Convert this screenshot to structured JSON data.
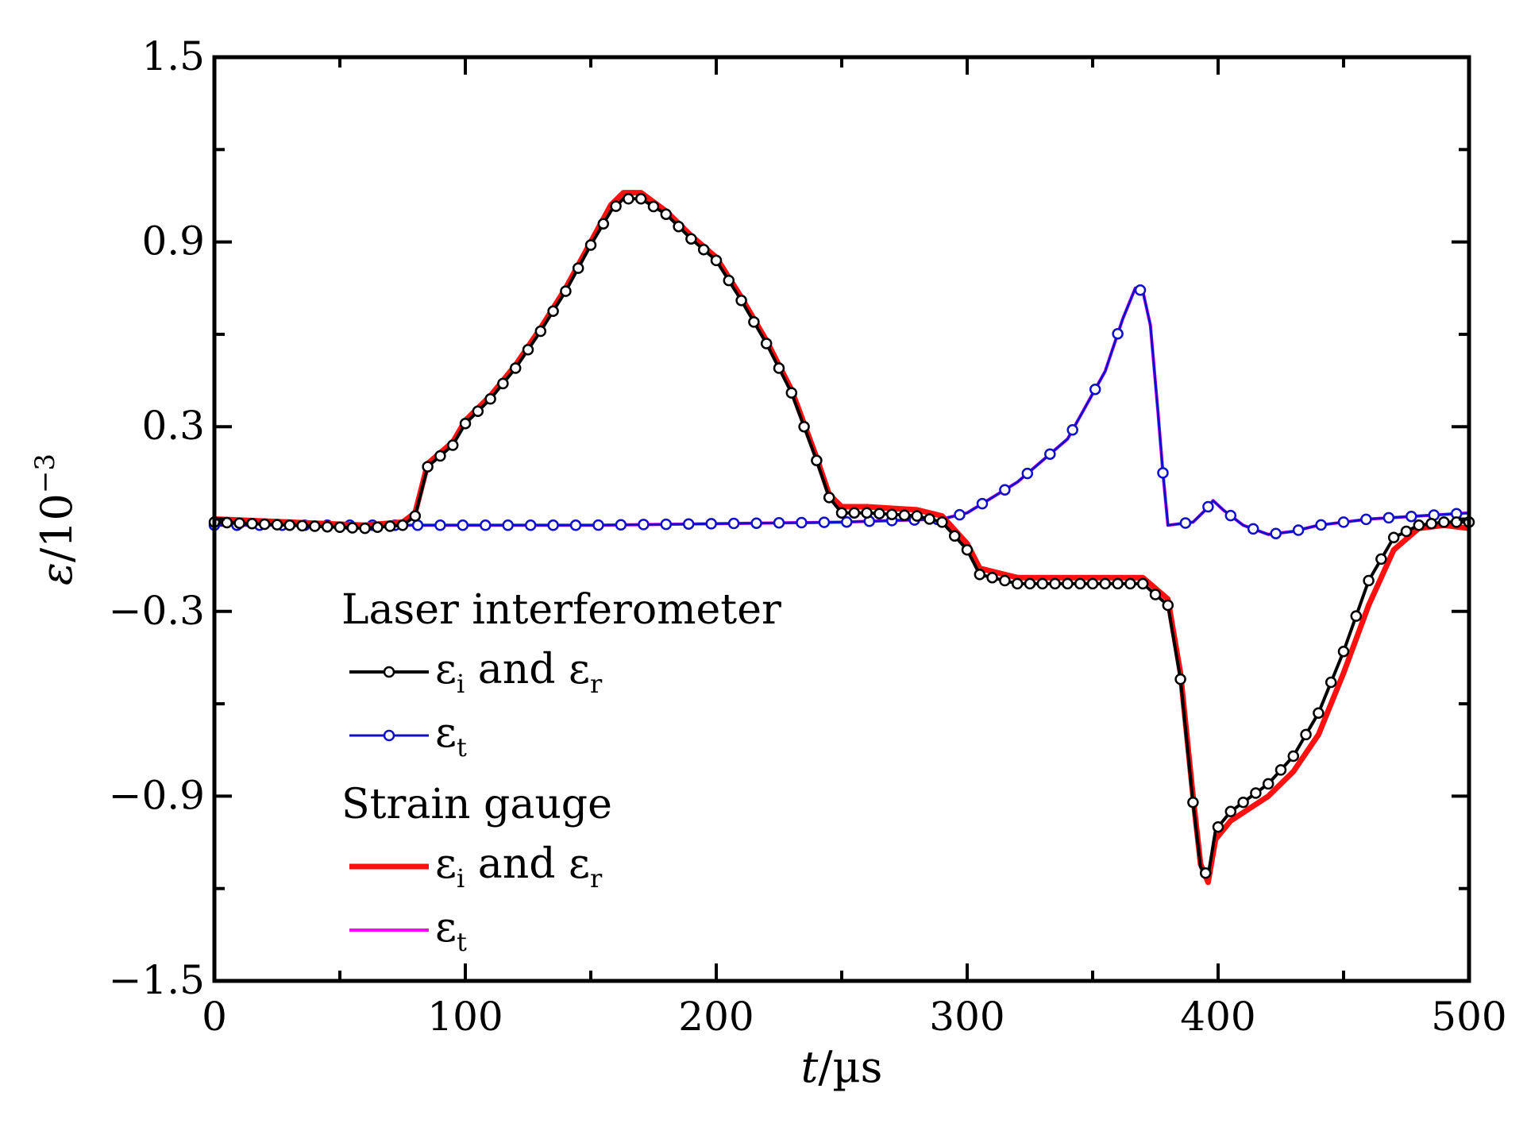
{
  "chart_data": {
    "type": "line",
    "xlabel": {
      "var": "t",
      "unit": "/µs"
    },
    "ylabel": {
      "var": "ε",
      "unit": "/10",
      "exp": "−3"
    },
    "xlim": [
      0,
      500
    ],
    "ylim": [
      -1.5,
      1.5
    ],
    "x_ticks": [
      0,
      100,
      200,
      300,
      400,
      500
    ],
    "x_tick_labels": [
      "0",
      "100",
      "200",
      "300",
      "400",
      "500"
    ],
    "y_ticks": [
      -1.5,
      -0.9,
      -0.3,
      0.3,
      0.9,
      1.5
    ],
    "y_tick_labels": [
      "−1.5",
      "−0.9",
      "−0.3",
      "0.3",
      "0.9",
      "1.5"
    ],
    "grid": false,
    "legend": {
      "position": "lower-left",
      "groups": [
        {
          "title": "Laser interferometer",
          "entries": [
            {
              "series": "li_ir",
              "label_main": "ε",
              "sub1": "i",
              "mid": " and ε",
              "sub2": "r"
            },
            {
              "series": "li_t",
              "label_main": "ε",
              "sub1": "t",
              "mid": "",
              "sub2": ""
            }
          ]
        },
        {
          "title": "Strain gauge",
          "entries": [
            {
              "series": "sg_ir",
              "label_main": "ε",
              "sub1": "i",
              "mid": " and ε",
              "sub2": "r"
            },
            {
              "series": "sg_t",
              "label_main": "ε",
              "sub1": "t",
              "mid": "",
              "sub2": ""
            }
          ]
        }
      ]
    },
    "series": [
      {
        "id": "sg_t",
        "color": "#ff00ff",
        "markers": false,
        "width": 4,
        "points": [
          [
            0,
            -0.02
          ],
          [
            80,
            -0.02
          ],
          [
            150,
            -0.02
          ],
          [
            250,
            -0.01
          ],
          [
            290,
            0.0
          ],
          [
            300,
            0.02
          ],
          [
            320,
            0.12
          ],
          [
            340,
            0.26
          ],
          [
            355,
            0.48
          ],
          [
            362,
            0.65
          ],
          [
            367,
            0.75
          ],
          [
            370,
            0.74
          ],
          [
            373,
            0.63
          ],
          [
            376,
            0.35
          ],
          [
            378,
            0.15
          ],
          [
            380,
            -0.02
          ],
          [
            390,
            -0.01
          ],
          [
            395,
            0.03
          ],
          [
            398,
            0.06
          ],
          [
            402,
            0.03
          ],
          [
            410,
            -0.02
          ],
          [
            420,
            -0.05
          ],
          [
            430,
            -0.04
          ],
          [
            440,
            -0.02
          ],
          [
            460,
            0.0
          ],
          [
            480,
            0.01
          ],
          [
            500,
            0.02
          ]
        ]
      },
      {
        "id": "li_t",
        "color": "#1010c8",
        "markers": true,
        "marker_step": 9,
        "width": 3,
        "points": [
          [
            0,
            -0.02
          ],
          [
            80,
            -0.02
          ],
          [
            150,
            -0.02
          ],
          [
            250,
            -0.01
          ],
          [
            290,
            0.0
          ],
          [
            300,
            0.02
          ],
          [
            320,
            0.12
          ],
          [
            340,
            0.26
          ],
          [
            355,
            0.48
          ],
          [
            362,
            0.65
          ],
          [
            367,
            0.75
          ],
          [
            370,
            0.74
          ],
          [
            373,
            0.63
          ],
          [
            376,
            0.35
          ],
          [
            378,
            0.15
          ],
          [
            380,
            -0.02
          ],
          [
            390,
            -0.01
          ],
          [
            395,
            0.03
          ],
          [
            398,
            0.06
          ],
          [
            402,
            0.03
          ],
          [
            410,
            -0.02
          ],
          [
            420,
            -0.05
          ],
          [
            430,
            -0.04
          ],
          [
            440,
            -0.02
          ],
          [
            460,
            0.0
          ],
          [
            480,
            0.01
          ],
          [
            500,
            0.02
          ]
        ]
      },
      {
        "id": "sg_ir",
        "color": "#ff1010",
        "markers": false,
        "width": 7,
        "points": [
          [
            0,
            0.0
          ],
          [
            30,
            -0.01
          ],
          [
            60,
            -0.02
          ],
          [
            75,
            -0.01
          ],
          [
            80,
            0.02
          ],
          [
            85,
            0.18
          ],
          [
            95,
            0.25
          ],
          [
            100,
            0.32
          ],
          [
            110,
            0.4
          ],
          [
            120,
            0.5
          ],
          [
            130,
            0.62
          ],
          [
            140,
            0.75
          ],
          [
            150,
            0.9
          ],
          [
            158,
            1.02
          ],
          [
            163,
            1.06
          ],
          [
            170,
            1.06
          ],
          [
            180,
            1.0
          ],
          [
            190,
            0.92
          ],
          [
            200,
            0.85
          ],
          [
            210,
            0.72
          ],
          [
            220,
            0.58
          ],
          [
            230,
            0.42
          ],
          [
            240,
            0.2
          ],
          [
            245,
            0.08
          ],
          [
            250,
            0.04
          ],
          [
            260,
            0.04
          ],
          [
            280,
            0.03
          ],
          [
            290,
            0.01
          ],
          [
            300,
            -0.08
          ],
          [
            305,
            -0.16
          ],
          [
            320,
            -0.19
          ],
          [
            350,
            -0.19
          ],
          [
            370,
            -0.19
          ],
          [
            380,
            -0.26
          ],
          [
            385,
            -0.5
          ],
          [
            390,
            -0.9
          ],
          [
            393,
            -1.12
          ],
          [
            396,
            -1.18
          ],
          [
            399,
            -1.04
          ],
          [
            405,
            -0.98
          ],
          [
            420,
            -0.9
          ],
          [
            430,
            -0.82
          ],
          [
            440,
            -0.7
          ],
          [
            450,
            -0.5
          ],
          [
            460,
            -0.28
          ],
          [
            470,
            -0.1
          ],
          [
            480,
            -0.03
          ],
          [
            490,
            -0.02
          ],
          [
            500,
            -0.03
          ]
        ]
      },
      {
        "id": "li_ir",
        "color": "#000000",
        "markers": true,
        "marker_step": 5,
        "width": 4,
        "points": [
          [
            0,
            -0.01
          ],
          [
            30,
            -0.02
          ],
          [
            60,
            -0.03
          ],
          [
            75,
            -0.02
          ],
          [
            80,
            0.01
          ],
          [
            85,
            0.17
          ],
          [
            95,
            0.24
          ],
          [
            100,
            0.31
          ],
          [
            110,
            0.39
          ],
          [
            120,
            0.49
          ],
          [
            130,
            0.61
          ],
          [
            140,
            0.74
          ],
          [
            150,
            0.89
          ],
          [
            158,
            1.0
          ],
          [
            163,
            1.04
          ],
          [
            170,
            1.04
          ],
          [
            180,
            0.99
          ],
          [
            190,
            0.91
          ],
          [
            200,
            0.84
          ],
          [
            210,
            0.71
          ],
          [
            220,
            0.57
          ],
          [
            230,
            0.41
          ],
          [
            240,
            0.19
          ],
          [
            245,
            0.07
          ],
          [
            250,
            0.02
          ],
          [
            260,
            0.02
          ],
          [
            280,
            0.01
          ],
          [
            290,
            -0.01
          ],
          [
            300,
            -0.1
          ],
          [
            305,
            -0.18
          ],
          [
            320,
            -0.21
          ],
          [
            350,
            -0.21
          ],
          [
            370,
            -0.21
          ],
          [
            380,
            -0.28
          ],
          [
            385,
            -0.52
          ],
          [
            390,
            -0.92
          ],
          [
            393,
            -1.13
          ],
          [
            396,
            -1.16
          ],
          [
            399,
            -1.01
          ],
          [
            405,
            -0.95
          ],
          [
            420,
            -0.86
          ],
          [
            430,
            -0.77
          ],
          [
            440,
            -0.63
          ],
          [
            450,
            -0.43
          ],
          [
            460,
            -0.2
          ],
          [
            470,
            -0.06
          ],
          [
            480,
            -0.02
          ],
          [
            490,
            -0.01
          ],
          [
            500,
            -0.01
          ]
        ]
      }
    ]
  }
}
